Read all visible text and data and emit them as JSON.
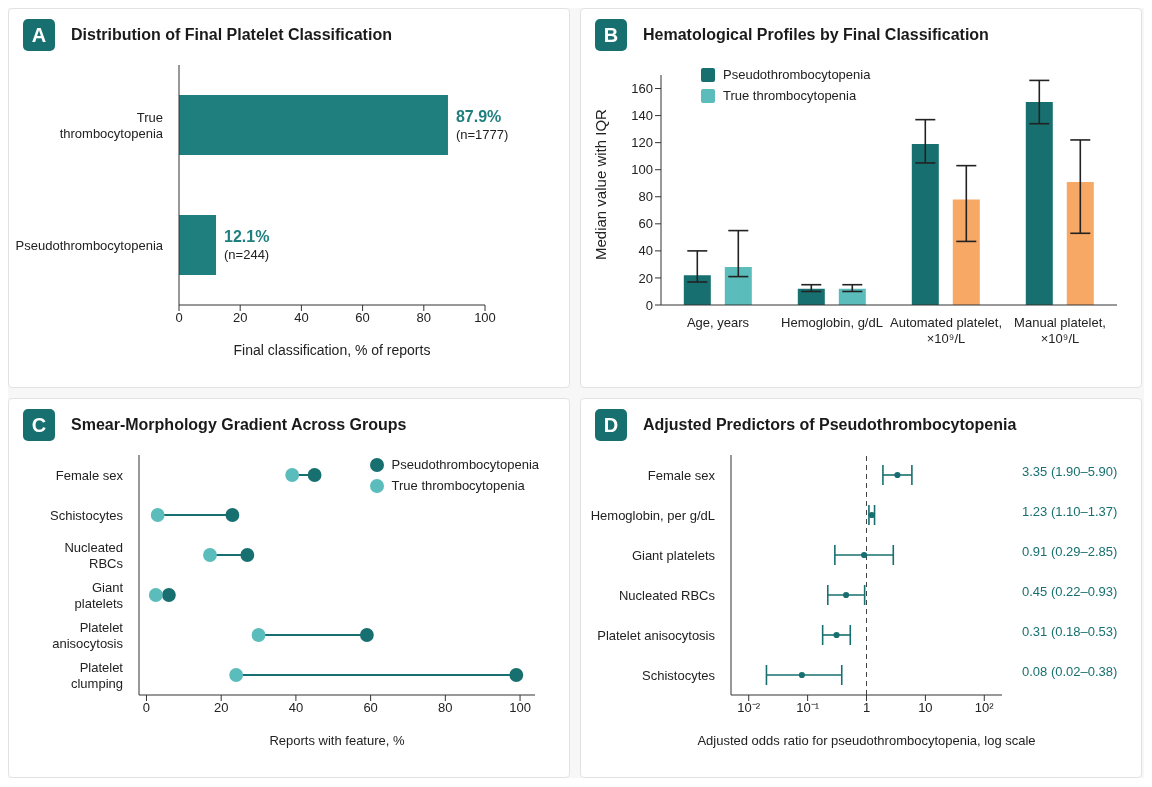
{
  "chart_data": [
    {
      "type": "bar",
      "orientation": "horizontal",
      "title": "Distribution of Final Platelet Classification",
      "annotations": [
        "A"
      ],
      "categories": [
        "True thrombocytopenia",
        "Pseudothrombocytopenia"
      ],
      "values": [
        87.9,
        12.1
      ],
      "color": "#1f7f7e",
      "value_labels": [
        "87.9%\n(n=1777)",
        "12.1%\n(n=244)"
      ],
      "xlabel": "Final classification, % of reports",
      "xlim": [
        0,
        100
      ],
      "xticks": [
        0,
        20,
        40,
        60,
        80,
        100
      ]
    },
    {
      "type": "bar",
      "title": "Hematological Profiles by Final Classification",
      "annotations": [
        "B"
      ],
      "ylabel": "Median value with IQR",
      "categories": [
        "Age, years",
        "Hemoglobin, g/dL",
        "Automated platelet, ×10⁹/L",
        "Manual platelet, ×10⁹/L"
      ],
      "series": [
        {
          "name": "Pseudothrombocytopenia",
          "color": "#17706f",
          "values": [
            22,
            12,
            119,
            150
          ],
          "errors": [
            [
              17,
              40
            ],
            [
              10,
              15
            ],
            [
              105,
              137
            ],
            [
              134,
              166
            ]
          ]
        },
        {
          "name": "True thrombocytopenia",
          "color": "#5bbcbc",
          "colors": [
            "#5bbcbc",
            "#5bbcbc",
            "#f7a865",
            "#f7a865"
          ],
          "values": [
            28,
            12,
            78,
            91
          ],
          "errors": [
            [
              21,
              55
            ],
            [
              10,
              15
            ],
            [
              47,
              103
            ],
            [
              53,
              122
            ]
          ]
        }
      ],
      "ylim": [
        0,
        170
      ],
      "yticks": [
        0,
        20,
        40,
        60,
        80,
        100,
        120,
        140,
        160
      ],
      "legend": "top left"
    },
    {
      "type": "scatter",
      "orientation": "horizontal",
      "title": "Smear-Morphology Gradient Across Groups",
      "annotations": [
        "C"
      ],
      "xlabel": "Reports with feature, %",
      "categories": [
        "Female sex",
        "Schistocytes",
        "Nucleated RBCs",
        "Giant platelets",
        "Platelet anisocytosis",
        "Platelet clumping"
      ],
      "series": [
        {
          "name": "Pseudothrombocytopenia",
          "color": "#17706f",
          "values": [
            45,
            23,
            27,
            6,
            59,
            99
          ]
        },
        {
          "name": "True thrombocytopenia",
          "color": "#5bbcbc",
          "values": [
            39,
            3,
            17,
            2.5,
            30,
            24
          ]
        }
      ],
      "xlim": [
        -2,
        104
      ],
      "xticks": [
        0,
        20,
        40,
        60,
        80,
        100
      ],
      "legend": "top right",
      "marker": "circle"
    },
    {
      "type": "scatter",
      "orientation": "horizontal",
      "title": "Adjusted Predictors of Pseudothrombocytopenia",
      "annotations": [
        "D"
      ],
      "xlabel": "Adjusted odds ratio for pseudothrombocytopenia, log scale",
      "categories": [
        "Female sex",
        "Hemoglobin, per g/dL",
        "Giant platelets",
        "Nucleated RBCs",
        "Platelet anisocytosis",
        "Schistocytes"
      ],
      "values": [
        3.35,
        1.23,
        0.91,
        0.45,
        0.31,
        0.08
      ],
      "errors": [
        [
          1.9,
          5.9
        ],
        [
          1.1,
          1.37
        ],
        [
          0.29,
          2.85
        ],
        [
          0.22,
          0.93
        ],
        [
          0.18,
          0.53
        ],
        [
          0.02,
          0.38
        ]
      ],
      "value_labels": [
        "3.35 (1.90–5.90)",
        "1.23 (1.10–1.37)",
        "0.91 (0.29–2.85)",
        "0.45 (0.22–0.93)",
        "0.31 (0.18–0.53)",
        "0.08 (0.02–0.38)"
      ],
      "color": "#17706f",
      "log": "x",
      "xlim": [
        0.005,
        200
      ],
      "xticks": [
        {
          "value": 0.01,
          "label": "10⁻²"
        },
        {
          "value": 0.1,
          "label": "10⁻¹"
        },
        1,
        10,
        {
          "value": 100,
          "label": "10²"
        }
      ],
      "ref_lines": [
        {
          "axis": "x",
          "value": 1,
          "line_style": "dashed"
        }
      ],
      "marker": "circle"
    }
  ]
}
